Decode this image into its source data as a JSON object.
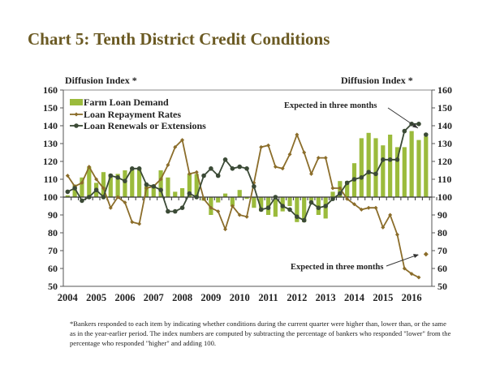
{
  "title": "Chart 5: Tenth District Credit Conditions",
  "left_axis_title": "Diffusion Index *",
  "right_axis_title": "Diffusion Index *",
  "footnote": "*Bankers responded to each item by indicating whether conditions during the current quarter were higher than, lower than, or the same as in the year-earlier period.  The index numbers are computed by subtracting the percentage of bankers who responded \"lower\" from the percentage who responded \"higher\" and adding 100.",
  "chart_data": {
    "type": "bar+line",
    "title": "Chart 5: Tenth District Credit Conditions",
    "ylabel": "Diffusion Index *",
    "ylim": [
      50,
      160
    ],
    "yticks": [
      50,
      60,
      70,
      80,
      90,
      100,
      110,
      120,
      130,
      140,
      150,
      160
    ],
    "xticks": [
      "2004",
      "2005",
      "2006",
      "2007",
      "2008",
      "2009",
      "2010",
      "2011",
      "2012",
      "2013",
      "2014",
      "2015",
      "2016"
    ],
    "x_start": "2004 Q1",
    "frequency": "quarterly",
    "legend": "top-left",
    "colors": {
      "bars": "#9bbb3c",
      "repayment": "#8b6d2a",
      "renewals": "#3b4a36"
    },
    "series": [
      {
        "name": "Farm Loan Demand",
        "type": "bar",
        "values": [
          101,
          107,
          111,
          117,
          108,
          114,
          113,
          113,
          115,
          116,
          116,
          106,
          107,
          115,
          111,
          103,
          105,
          113,
          113,
          98,
          90,
          97,
          102,
          95,
          104,
          99,
          94,
          92,
          90,
          89,
          92,
          95,
          86,
          86,
          98,
          90,
          88,
          103,
          109,
          109,
          119,
          133,
          136,
          133,
          129,
          135,
          128,
          128,
          137,
          132
        ],
        "expected": 134
      },
      {
        "name": "Loan Repayment Rates",
        "type": "line",
        "values": [
          112,
          106,
          108,
          117,
          110,
          105,
          94,
          100,
          97,
          86,
          85,
          105,
          106,
          110,
          118,
          128,
          132,
          113,
          114,
          99,
          94,
          92,
          82,
          95,
          90,
          89,
          108,
          128,
          129,
          117,
          116,
          124,
          135,
          125,
          113,
          122,
          122,
          105,
          105,
          99,
          96,
          93,
          94,
          94,
          83,
          90,
          79,
          60,
          57,
          55
        ],
        "expected": 68
      },
      {
        "name": "Loan Renewals or Extensions",
        "type": "line",
        "values": [
          103,
          105,
          98,
          100,
          104,
          100,
          112,
          111,
          109,
          116,
          116,
          107,
          106,
          104,
          92,
          92,
          94,
          102,
          100,
          112,
          116,
          112,
          121,
          116,
          117,
          116,
          106,
          93,
          94,
          100,
          95,
          93,
          89,
          87,
          97,
          94,
          95,
          99,
          102,
          108,
          110,
          111,
          114,
          113,
          121,
          121,
          121,
          137,
          141,
          141
        ],
        "expected": 135
      }
    ],
    "annotations": [
      "Expected in three months",
      "Expected in three months"
    ]
  }
}
